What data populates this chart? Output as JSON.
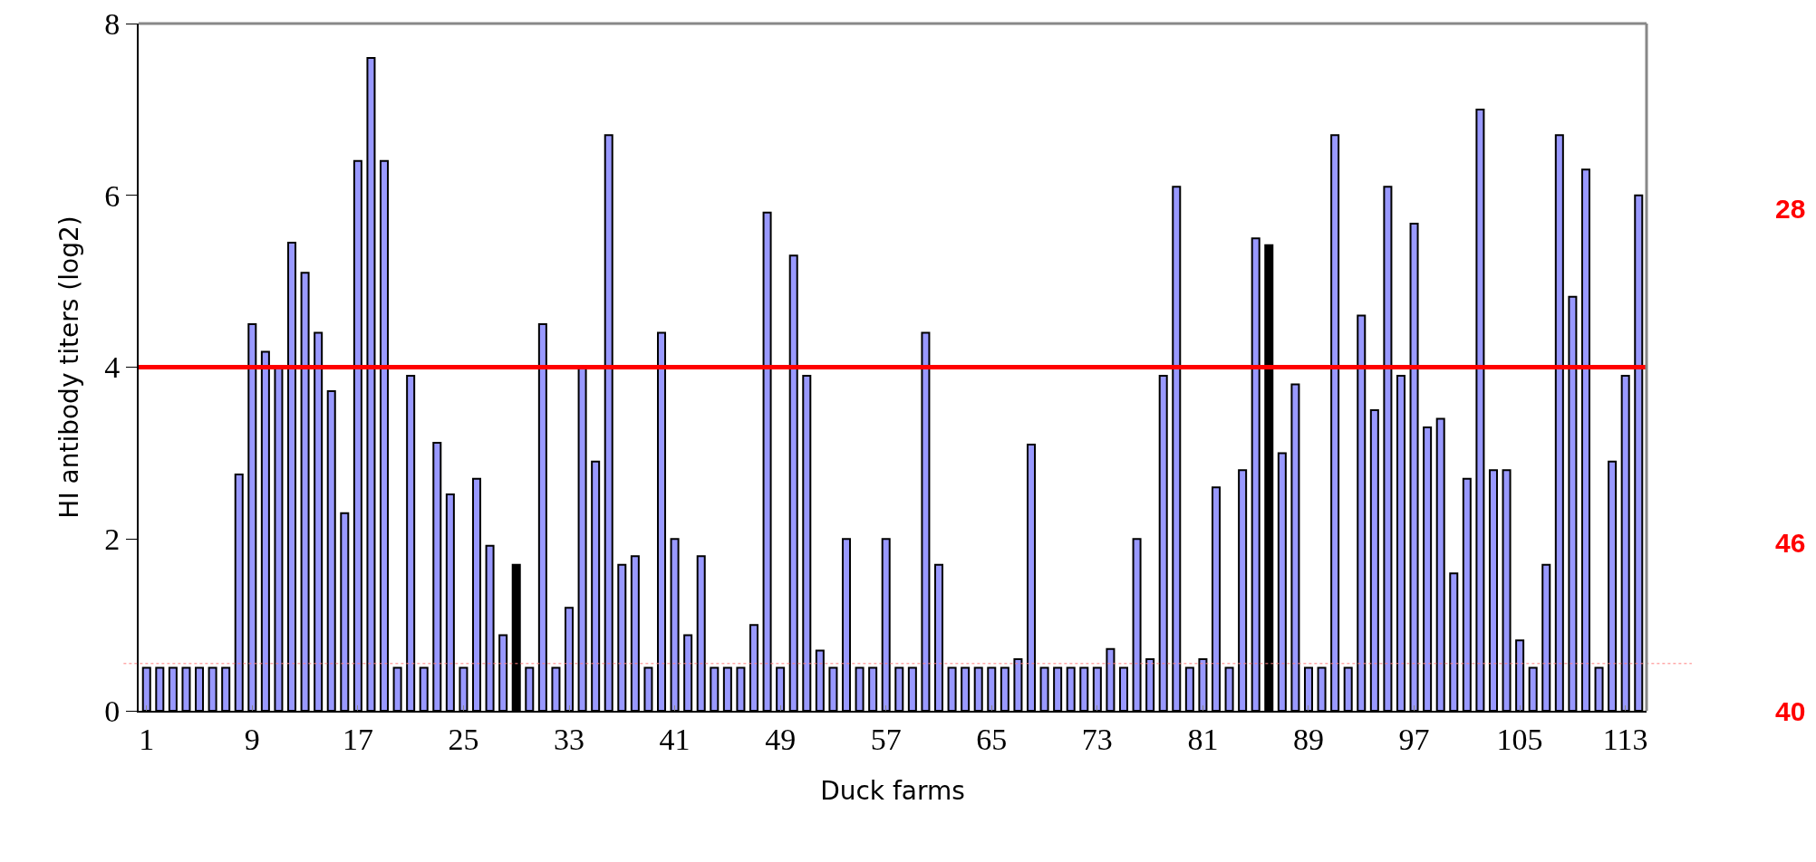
{
  "chart_data": {
    "type": "bar",
    "xlabel": "Duck farms",
    "ylabel": "HI antibody titers (log2)",
    "categories": [
      "1",
      null,
      null,
      null,
      null,
      null,
      null,
      null,
      "9",
      null,
      null,
      null,
      null,
      null,
      null,
      null,
      "17",
      null,
      null,
      null,
      null,
      null,
      null,
      null,
      "25",
      null,
      null,
      null,
      null,
      null,
      null,
      null,
      "33",
      null,
      null,
      null,
      null,
      null,
      null,
      null,
      "41",
      null,
      null,
      null,
      null,
      null,
      null,
      null,
      "49",
      null,
      null,
      null,
      null,
      null,
      null,
      null,
      "57",
      null,
      null,
      null,
      null,
      null,
      null,
      null,
      "65",
      null,
      null,
      null,
      null,
      null,
      null,
      null,
      "73",
      null,
      null,
      null,
      null,
      null,
      null,
      null,
      "81",
      null,
      null,
      null,
      null,
      null,
      null,
      null,
      "89",
      null,
      null,
      null,
      null,
      null,
      null,
      null,
      "97",
      null,
      null,
      null,
      null,
      null,
      null,
      null,
      "105",
      null,
      null,
      null,
      null,
      null,
      null,
      null,
      "113",
      null
    ],
    "values": [
      0.5,
      0.5,
      0.5,
      0.5,
      0.5,
      0.5,
      0.5,
      2.75,
      4.5,
      4.18,
      4.0,
      5.45,
      5.1,
      4.4,
      3.72,
      2.3,
      6.4,
      7.6,
      6.4,
      0.5,
      3.9,
      0.5,
      3.12,
      2.52,
      0.5,
      2.7,
      1.92,
      0.88,
      1.7,
      0.5,
      4.5,
      0.5,
      1.2,
      4.0,
      2.9,
      6.7,
      1.7,
      1.8,
      0.5,
      4.4,
      2.0,
      0.88,
      1.8,
      0.5,
      0.5,
      0.5,
      1.0,
      5.8,
      0.5,
      5.3,
      3.9,
      0.7,
      0.5,
      2.0,
      0.5,
      0.5,
      2.0,
      0.5,
      0.5,
      4.4,
      1.7,
      0.5,
      0.5,
      0.5,
      0.5,
      0.5,
      0.6,
      3.1,
      0.5,
      0.5,
      0.5,
      0.5,
      0.5,
      0.72,
      0.5,
      2.0,
      0.6,
      3.9,
      6.1,
      0.5,
      0.6,
      2.6,
      0.5,
      2.8,
      5.5,
      5.42,
      3.0,
      3.8,
      0.5,
      0.5,
      6.7,
      0.5,
      4.6,
      3.5,
      6.1,
      3.9,
      5.67,
      3.3,
      3.4,
      1.6,
      2.7,
      7.0,
      2.8,
      2.8,
      0.82,
      0.5,
      1.7,
      6.7,
      4.82,
      6.3,
      0.5,
      2.9,
      3.9,
      6.0
    ],
    "colors": [
      "#9999ff",
      "#9999ff",
      "#9999ff",
      "#9999ff",
      "#9999ff",
      "#9999ff",
      "#9999ff",
      "#9999ff",
      "#9999ff",
      "#9999ff",
      "#9999ff",
      "#9999ff",
      "#9999ff",
      "#9999ff",
      "#9999ff",
      "#9999ff",
      "#9999ff",
      "#9999ff",
      "#9999ff",
      "#9999ff",
      "#9999ff",
      "#9999ff",
      "#9999ff",
      "#9999ff",
      "#9999ff",
      "#9999ff",
      "#9999ff",
      "#9999ff",
      "#000000",
      "#9999ff",
      "#9999ff",
      "#9999ff",
      "#9999ff",
      "#9999ff",
      "#9999ff",
      "#9999ff",
      "#9999ff",
      "#9999ff",
      "#9999ff",
      "#9999ff",
      "#9999ff",
      "#9999ff",
      "#9999ff",
      "#9999ff",
      "#9999ff",
      "#9999ff",
      "#9999ff",
      "#9999ff",
      "#9999ff",
      "#9999ff",
      "#9999ff",
      "#9999ff",
      "#9999ff",
      "#9999ff",
      "#9999ff",
      "#9999ff",
      "#9999ff",
      "#9999ff",
      "#9999ff",
      "#9999ff",
      "#9999ff",
      "#9999ff",
      "#9999ff",
      "#9999ff",
      "#9999ff",
      "#9999ff",
      "#9999ff",
      "#9999ff",
      "#9999ff",
      "#9999ff",
      "#9999ff",
      "#9999ff",
      "#9999ff",
      "#9999ff",
      "#9999ff",
      "#9999ff",
      "#9999ff",
      "#9999ff",
      "#9999ff",
      "#9999ff",
      "#9999ff",
      "#9999ff",
      "#9999ff",
      "#9999ff",
      "#9999ff",
      "#000000",
      "#9999ff",
      "#9999ff",
      "#9999ff",
      "#9999ff",
      "#9999ff",
      "#9999ff",
      "#9999ff",
      "#9999ff",
      "#9999ff",
      "#9999ff",
      "#9999ff",
      "#9999ff",
      "#9999ff",
      "#9999ff",
      "#9999ff",
      "#9999ff",
      "#9999ff",
      "#9999ff",
      "#9999ff",
      "#9999ff",
      "#9999ff",
      "#9999ff",
      "#9999ff",
      "#9999ff",
      "#9999ff",
      "#9999ff",
      "#9999ff",
      "#9999ff"
    ],
    "ylim": [
      0,
      8
    ],
    "yticks": [
      0,
      2,
      4,
      6,
      8
    ],
    "grid": false,
    "ref_lines": [
      {
        "axis": "y",
        "value": 4,
        "color": "#ff0000",
        "line_style": "solid"
      },
      {
        "axis": "y",
        "value": 0.55,
        "color": "#ff8080",
        "line_style": "dotted"
      }
    ],
    "annotations": [
      "28",
      "46",
      "40"
    ]
  }
}
